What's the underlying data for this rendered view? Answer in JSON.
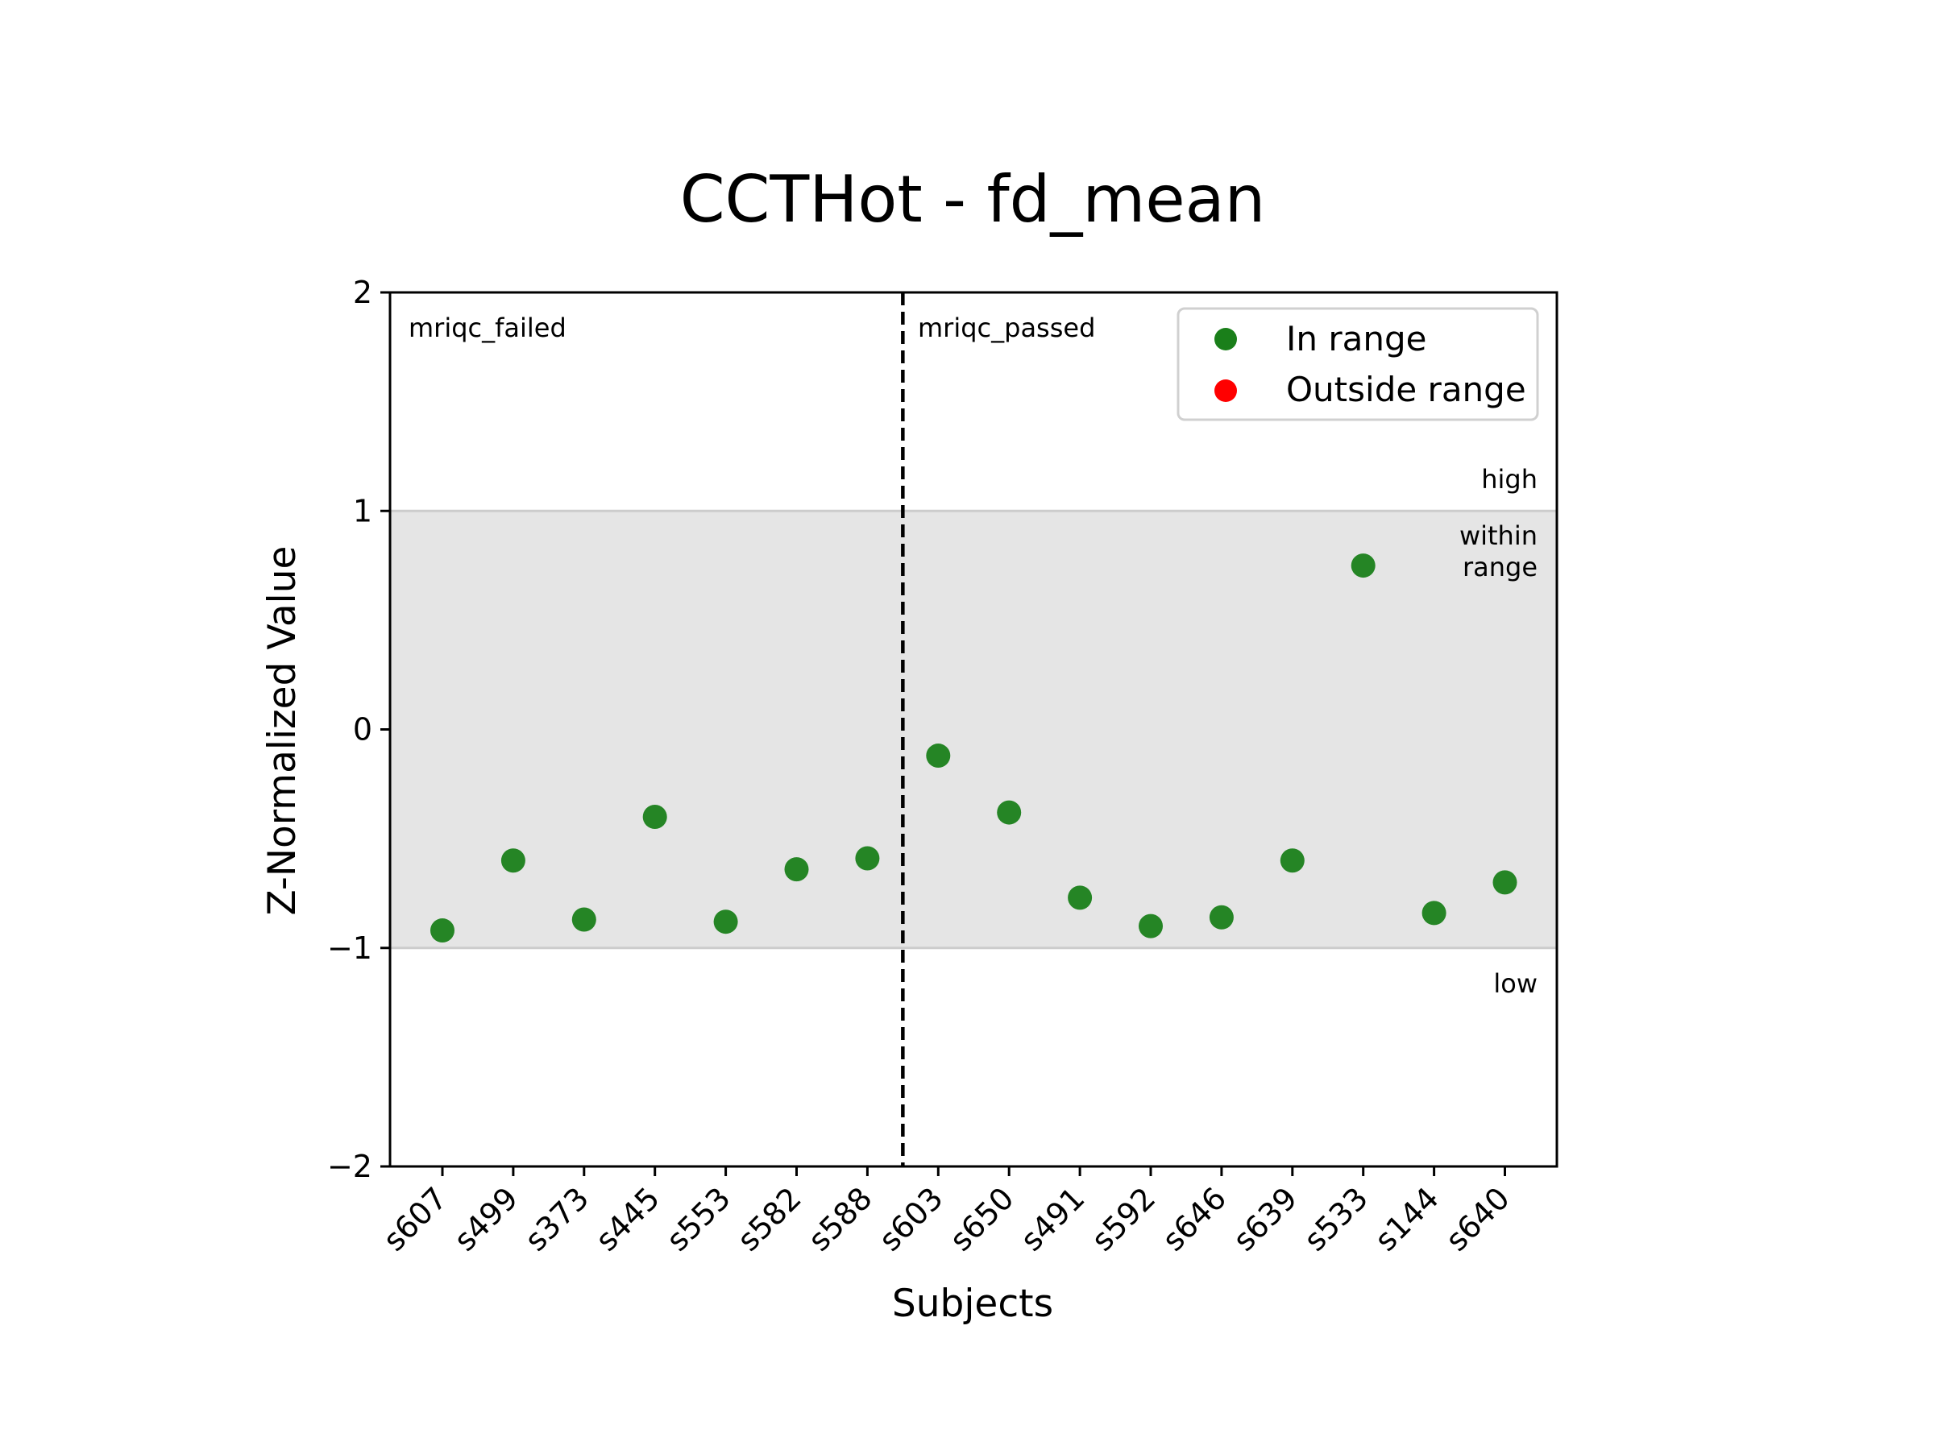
{
  "chart_data": {
    "type": "scatter",
    "title": "CCTHot - fd_mean",
    "xlabel": "Subjects",
    "ylabel": "Z-Normalized Value",
    "ylim": [
      -2,
      2
    ],
    "yticks": [
      "2",
      "1",
      "0",
      "−1",
      "−2"
    ],
    "ytick_values": [
      2,
      1,
      0,
      -1,
      -2
    ],
    "categories": [
      "s607",
      "s499",
      "s373",
      "s445",
      "s553",
      "s582",
      "s588",
      "s603",
      "s650",
      "s491",
      "s592",
      "s646",
      "s639",
      "s533",
      "s144",
      "s640"
    ],
    "values": [
      -0.92,
      -0.6,
      -0.87,
      -0.4,
      -0.88,
      -0.64,
      -0.59,
      -0.12,
      -0.38,
      -0.77,
      -0.9,
      -0.86,
      -0.6,
      0.75,
      -0.84,
      -0.7
    ],
    "range": {
      "low": -1,
      "high": 1
    },
    "divider_after_index": 6,
    "groups": {
      "left": "mriqc_failed",
      "right": "mriqc_passed"
    },
    "band_labels": {
      "high": "high",
      "within_line1": "within",
      "within_line2": "range",
      "low": "low"
    },
    "legend": {
      "position": "top-right",
      "in_range": "In range",
      "outside_range": "Outside range"
    },
    "colors": {
      "in_range": "#1a7f1a",
      "outside_range": "#ff0000",
      "band": "#e5e5e5",
      "band_edge": "#cccccc"
    }
  }
}
